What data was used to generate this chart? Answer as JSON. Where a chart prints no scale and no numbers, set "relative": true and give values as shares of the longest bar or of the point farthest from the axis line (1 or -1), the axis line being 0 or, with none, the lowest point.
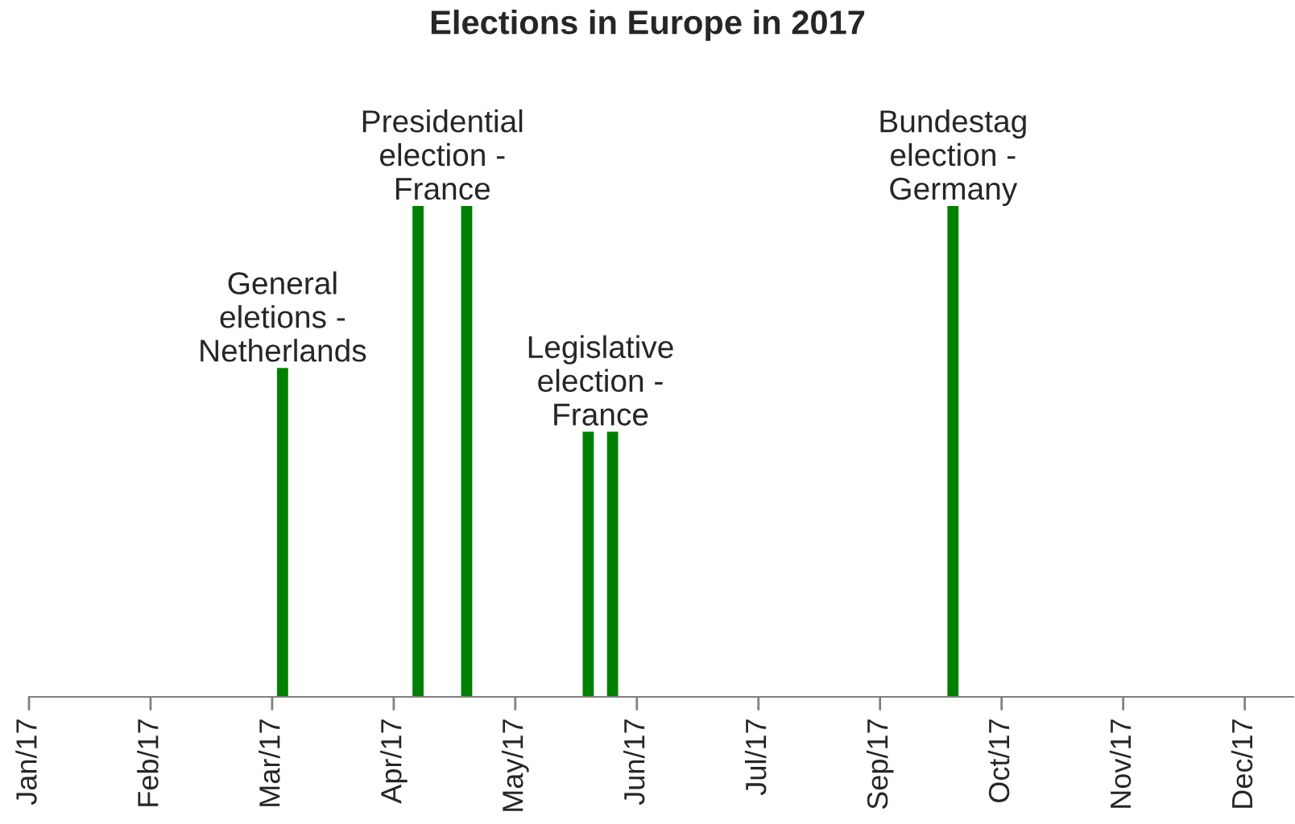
{
  "chart_data": {
    "type": "bar",
    "title": "Elections in Europe in 2017",
    "relative": true,
    "x": [
      "2017-03-15",
      "2017-04-23",
      "2017-05-07",
      "2017-06-11",
      "2017-06-18",
      "2017-09-24"
    ],
    "values": [
      0.67,
      1,
      1,
      0.54,
      0.54,
      1
    ],
    "color": "#008000",
    "xlim": [
      "2017-01-01",
      "2017-12-31"
    ],
    "xticks": [
      {
        "value": "2017-01-01",
        "label": "Jan/17"
      },
      {
        "value": "2017-02-05",
        "label": "Feb/17"
      },
      {
        "value": "2017-03-12",
        "label": "Mar/17"
      },
      {
        "value": "2017-04-16",
        "label": "Apr/17"
      },
      {
        "value": "2017-05-21",
        "label": "May/17"
      },
      {
        "value": "2017-06-25",
        "label": "Jun/17"
      },
      {
        "value": "2017-07-30",
        "label": "Jul/17"
      },
      {
        "value": "2017-09-03",
        "label": "Sep/17"
      },
      {
        "value": "2017-10-08",
        "label": "Oct/17"
      },
      {
        "value": "2017-11-12",
        "label": "Nov/17"
      },
      {
        "value": "2017-12-17",
        "label": "Dec/17"
      }
    ],
    "annotations": [
      {
        "text": "General\neletions -\nNetherlands",
        "x": "2017-03-15",
        "y": 0.67
      },
      {
        "text": "Presidential\nelection -\nFrance",
        "x": "2017-04-23",
        "y": 1
      },
      {
        "text": "Legislative\nelection -\nFrance",
        "x": "2017-06-11",
        "y": 0.54
      },
      {
        "text": "Bundestag\nelection -\nGermany",
        "x": "2017-09-24",
        "y": 1
      }
    ],
    "grid": false
  }
}
